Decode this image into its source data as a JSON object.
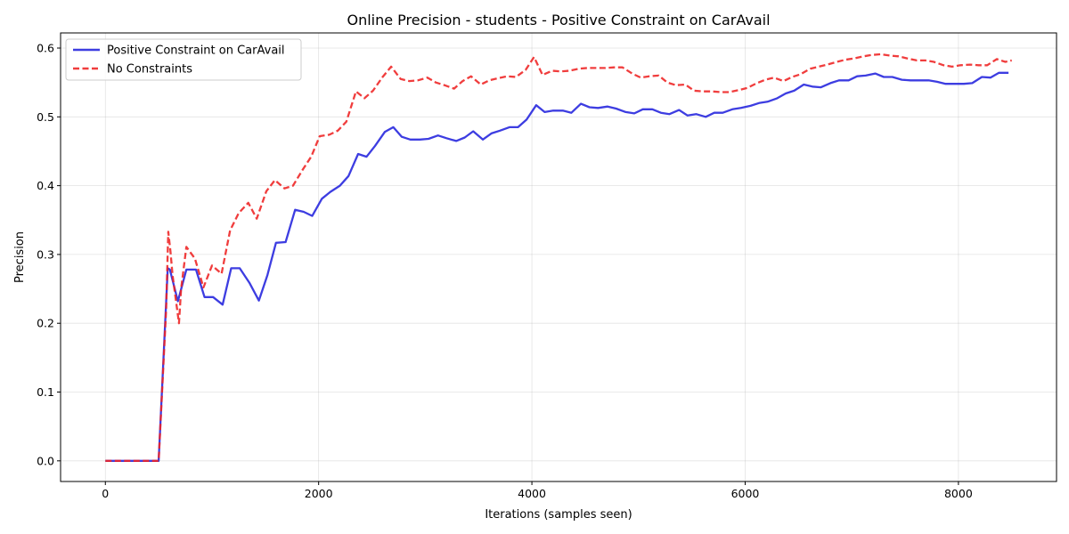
{
  "chart_data": {
    "type": "line",
    "title": "Online Precision - students - Positive Constraint on CarAvail",
    "xlabel": "Iterations (samples seen)",
    "ylabel": "Precision",
    "xlim": [
      -420,
      8920
    ],
    "ylim": [
      -0.03,
      0.622
    ],
    "xticks": [
      0,
      2000,
      4000,
      6000,
      8000
    ],
    "xtick_labels": [
      "0",
      "2000",
      "4000",
      "6000",
      "8000"
    ],
    "yticks": [
      0.0,
      0.1,
      0.2,
      0.3,
      0.4,
      0.5,
      0.6
    ],
    "ytick_labels": [
      "0.0",
      "0.1",
      "0.2",
      "0.3",
      "0.4",
      "0.5",
      "0.6"
    ],
    "grid": true,
    "legend_position": "top-left",
    "series": [
      {
        "name": "Positive Constraint on CarAvail",
        "color": "#2222dd",
        "style": "solid",
        "x": [
          0,
          500,
          585,
          605,
          680,
          760,
          850,
          930,
          1010,
          1100,
          1180,
          1260,
          1350,
          1440,
          1520,
          1600,
          1690,
          1780,
          1860,
          1940,
          2030,
          2110,
          2200,
          2280,
          2370,
          2450,
          2530,
          2620,
          2700,
          2780,
          2860,
          2950,
          3030,
          3120,
          3200,
          3290,
          3370,
          3450,
          3540,
          3620,
          3700,
          3790,
          3870,
          3950,
          4040,
          4120,
          4200,
          4290,
          4370,
          4460,
          4540,
          4620,
          4710,
          4790,
          4880,
          4960,
          5040,
          5130,
          5210,
          5290,
          5380,
          5460,
          5540,
          5630,
          5710,
          5790,
          5880,
          5960,
          6050,
          6130,
          6210,
          6300,
          6380,
          6460,
          6550,
          6630,
          6710,
          6800,
          6880,
          6970,
          7050,
          7130,
          7220,
          7300,
          7380,
          7470,
          7550,
          7630,
          7720,
          7800,
          7880,
          7970,
          8050,
          8130,
          8220,
          8300,
          8380,
          8470
        ],
        "y": [
          0.0,
          0.0,
          0.28,
          0.278,
          0.232,
          0.278,
          0.278,
          0.238,
          0.238,
          0.227,
          0.28,
          0.28,
          0.259,
          0.233,
          0.27,
          0.317,
          0.318,
          0.365,
          0.362,
          0.356,
          0.381,
          0.391,
          0.4,
          0.414,
          0.446,
          0.442,
          0.458,
          0.478,
          0.485,
          0.471,
          0.467,
          0.467,
          0.468,
          0.473,
          0.469,
          0.465,
          0.47,
          0.479,
          0.467,
          0.476,
          0.48,
          0.485,
          0.485,
          0.496,
          0.517,
          0.507,
          0.509,
          0.509,
          0.506,
          0.519,
          0.514,
          0.513,
          0.515,
          0.512,
          0.507,
          0.505,
          0.511,
          0.511,
          0.506,
          0.504,
          0.51,
          0.502,
          0.504,
          0.5,
          0.506,
          0.506,
          0.511,
          0.513,
          0.516,
          0.52,
          0.522,
          0.527,
          0.534,
          0.538,
          0.547,
          0.544,
          0.543,
          0.549,
          0.553,
          0.553,
          0.559,
          0.56,
          0.563,
          0.558,
          0.558,
          0.554,
          0.553,
          0.553,
          0.553,
          0.551,
          0.548,
          0.548,
          0.548,
          0.549,
          0.558,
          0.557,
          0.564,
          0.564
        ]
      },
      {
        "name": "No Constraints",
        "color": "#ee2222",
        "style": "dashed",
        "x": [
          0,
          500,
          570,
          590,
          610,
          630,
          690,
          710,
          760,
          840,
          920,
          1000,
          1090,
          1170,
          1250,
          1340,
          1420,
          1510,
          1590,
          1680,
          1760,
          1850,
          1930,
          2010,
          2100,
          2180,
          2260,
          2350,
          2430,
          2510,
          2600,
          2680,
          2770,
          2850,
          2930,
          3020,
          3100,
          3180,
          3270,
          3350,
          3430,
          3520,
          3600,
          3680,
          3770,
          3850,
          3940,
          4020,
          4100,
          4190,
          4270,
          4350,
          4440,
          4520,
          4600,
          4690,
          4770,
          4850,
          4940,
          5020,
          5100,
          5190,
          5270,
          5350,
          5440,
          5520,
          5600,
          5690,
          5770,
          5850,
          5940,
          6020,
          6110,
          6190,
          6270,
          6360,
          6440,
          6520,
          6610,
          6690,
          6770,
          6860,
          6940,
          7020,
          7110,
          7190,
          7270,
          7360,
          7440,
          7520,
          7610,
          7690,
          7770,
          7860,
          7940,
          8020,
          8110,
          8190,
          8270,
          8360,
          8440,
          8500
        ],
        "y": [
          0.0,
          0.0,
          0.22,
          0.333,
          0.305,
          0.27,
          0.2,
          0.25,
          0.311,
          0.294,
          0.252,
          0.284,
          0.272,
          0.335,
          0.36,
          0.375,
          0.352,
          0.392,
          0.408,
          0.396,
          0.4,
          0.423,
          0.442,
          0.472,
          0.474,
          0.48,
          0.493,
          0.537,
          0.527,
          0.538,
          0.558,
          0.573,
          0.555,
          0.552,
          0.553,
          0.557,
          0.55,
          0.546,
          0.541,
          0.552,
          0.559,
          0.547,
          0.553,
          0.556,
          0.559,
          0.558,
          0.568,
          0.587,
          0.561,
          0.567,
          0.566,
          0.567,
          0.57,
          0.571,
          0.571,
          0.571,
          0.572,
          0.572,
          0.563,
          0.557,
          0.559,
          0.56,
          0.55,
          0.546,
          0.547,
          0.538,
          0.537,
          0.537,
          0.536,
          0.536,
          0.539,
          0.542,
          0.549,
          0.554,
          0.557,
          0.552,
          0.558,
          0.562,
          0.57,
          0.573,
          0.576,
          0.58,
          0.583,
          0.585,
          0.588,
          0.59,
          0.591,
          0.589,
          0.588,
          0.585,
          0.582,
          0.582,
          0.58,
          0.575,
          0.573,
          0.575,
          0.576,
          0.575,
          0.575,
          0.584,
          0.58,
          0.582
        ]
      }
    ]
  }
}
